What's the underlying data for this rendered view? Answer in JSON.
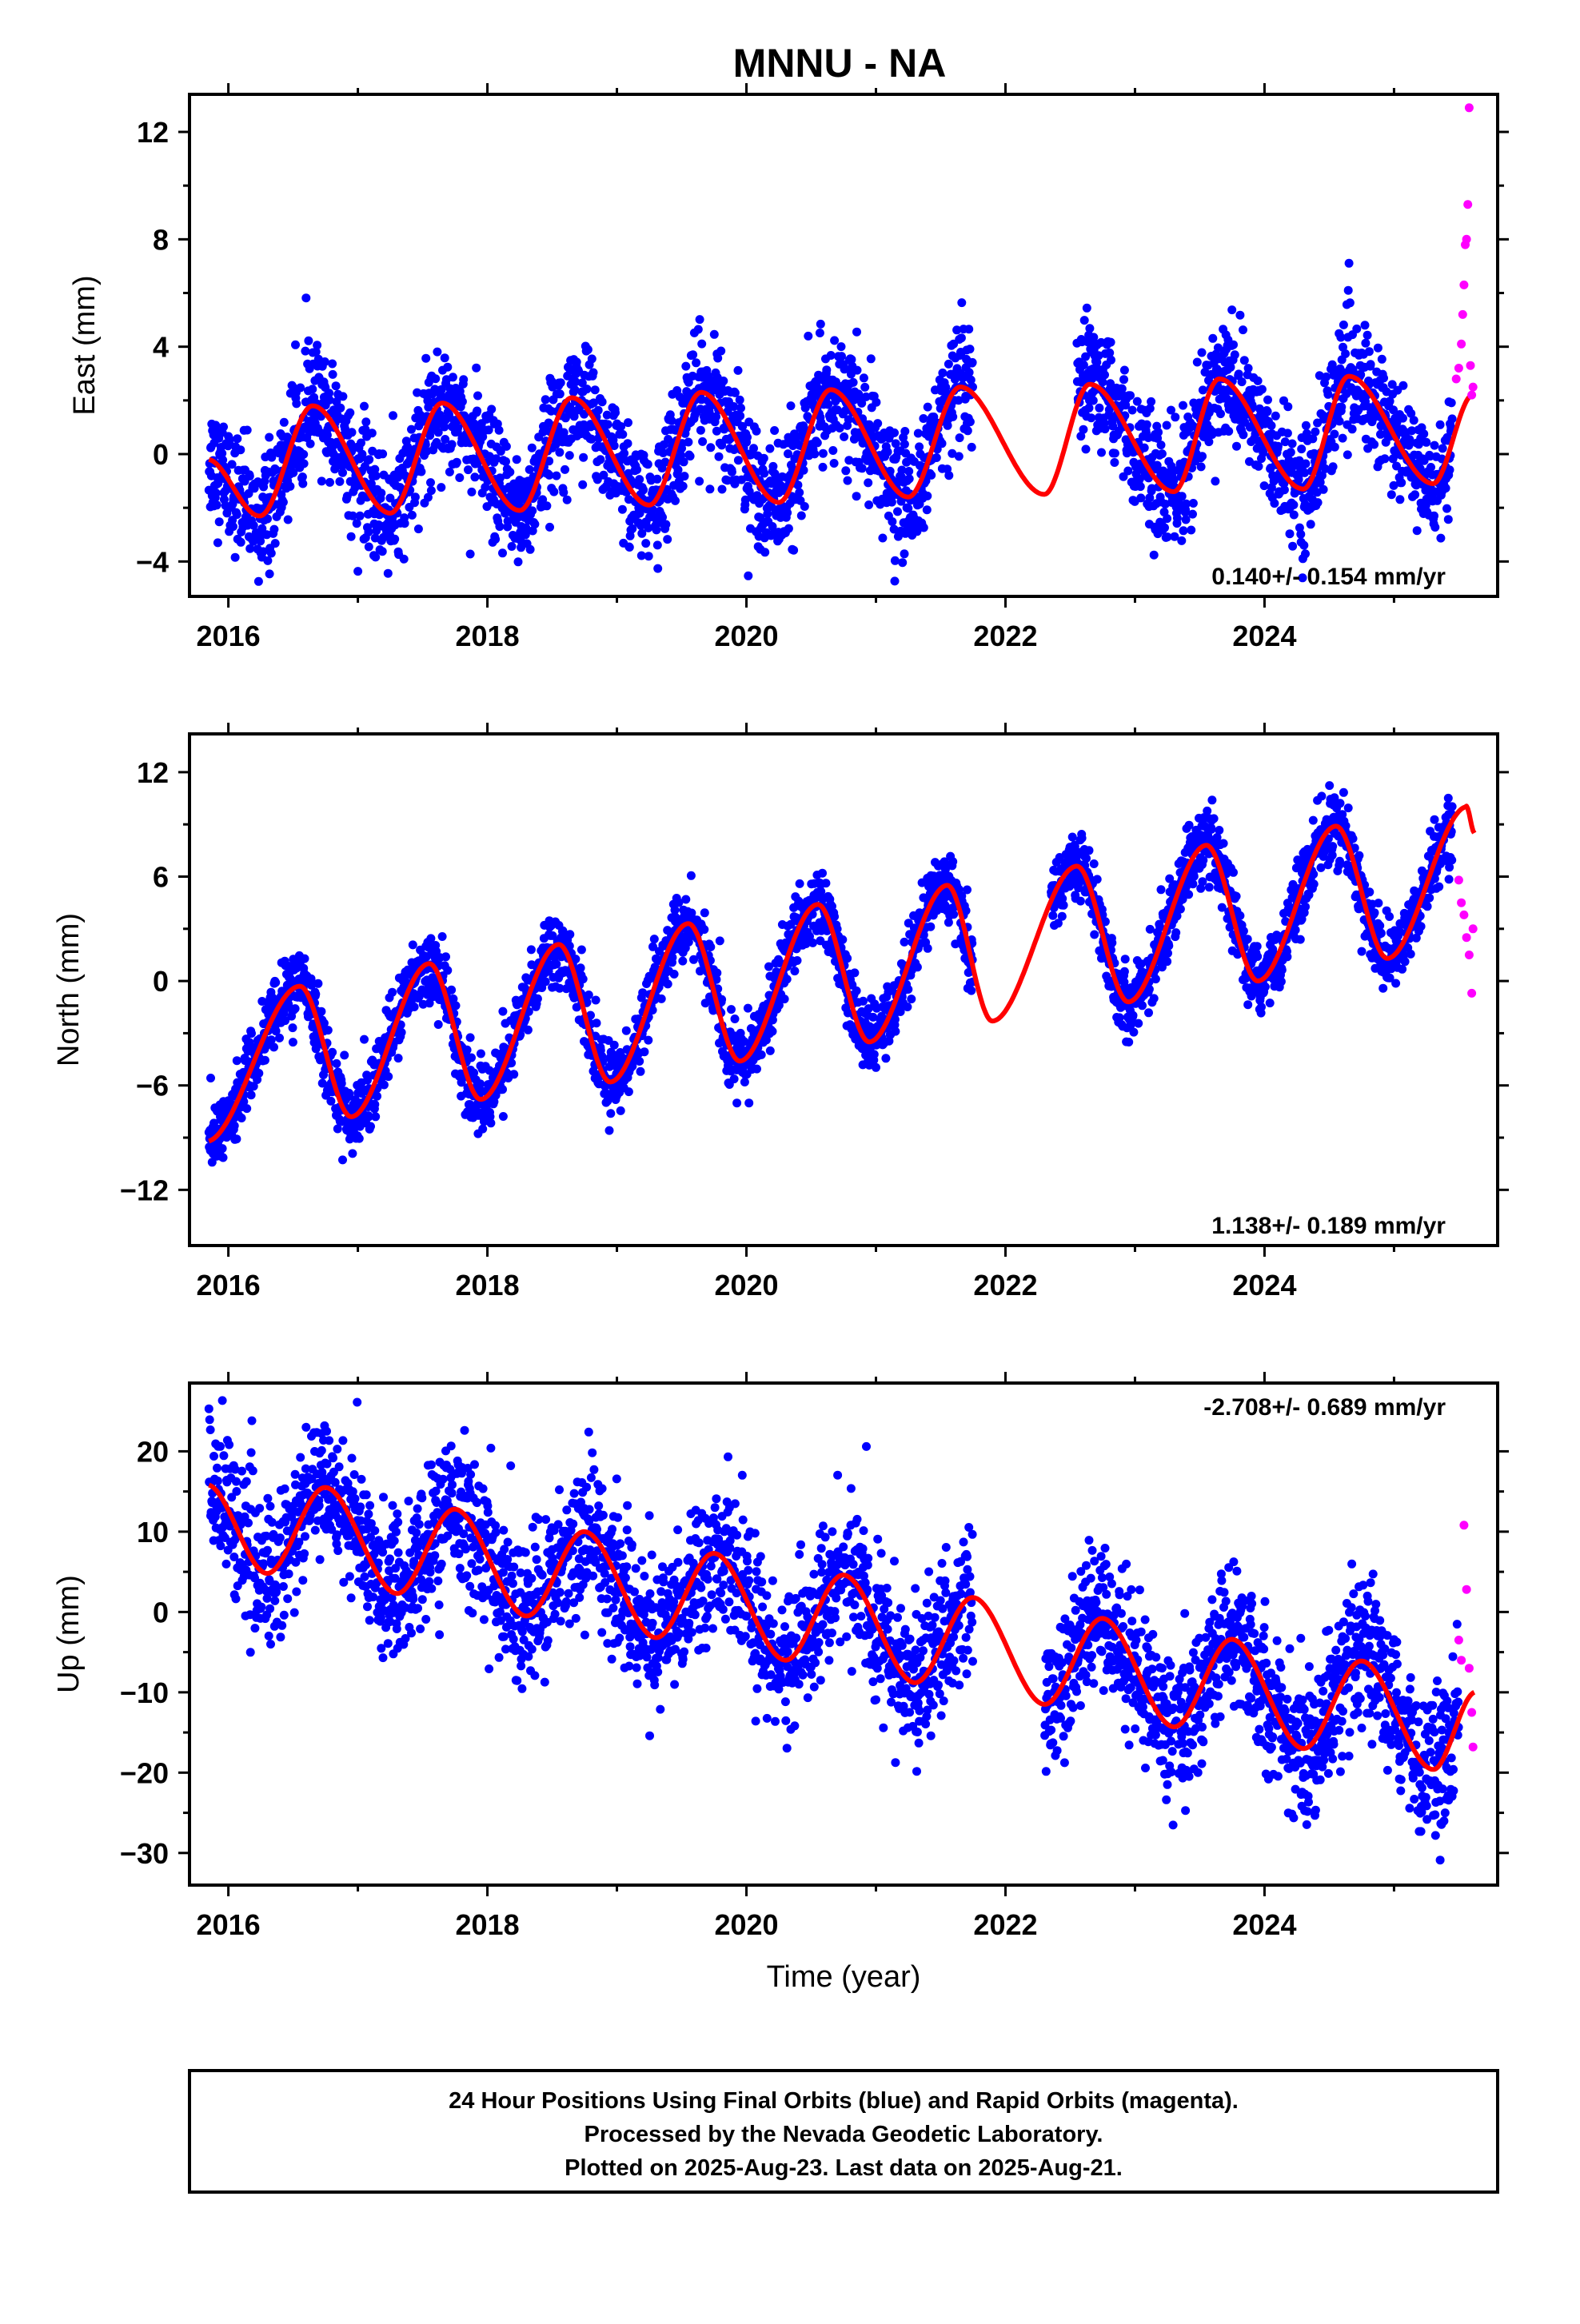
{
  "title": "MNNU - NA",
  "colors": {
    "final": "#0000ff",
    "rapid": "#ff00ff",
    "model": "#ff0000",
    "frame": "#000000"
  },
  "xaxis": {
    "label": "Time (year)",
    "ticks": [
      "2016",
      "2018",
      "2020",
      "2022",
      "2024"
    ]
  },
  "panels": [
    {
      "ylabel": "East (mm)",
      "yticks": [
        "12",
        "8",
        "4",
        "0",
        "−4"
      ],
      "rate": "0.140+/- 0.154 mm/yr"
    },
    {
      "ylabel": "North (mm)",
      "yticks": [
        "12",
        "6",
        "0",
        "−6",
        "−12"
      ],
      "rate": "1.138+/- 0.189 mm/yr"
    },
    {
      "ylabel": "Up (mm)",
      "yticks": [
        "20",
        "10",
        "0",
        "−10",
        "−20",
        "−30"
      ],
      "rate": "-2.708+/- 0.689 mm/yr"
    }
  ],
  "footer": {
    "line1": "24 Hour Positions Using Final Orbits (blue) and Rapid Orbits (magenta).",
    "line2": "Processed by the Nevada Geodetic Laboratory.",
    "line3": "Plotted on 2025-Aug-23. Last data on 2025-Aug-21."
  },
  "chart_data": [
    {
      "type": "scatter",
      "title": "MNNU - NA",
      "ylabel": "East (mm)",
      "xlim": [
        2015.7,
        2025.8
      ],
      "ylim": [
        -5.3,
        13.4
      ],
      "grid": false,
      "series": [
        {
          "kind": "final_positions",
          "rapid": false,
          "mean": 0.0,
          "amplitude": 2.0,
          "trend": 0.14,
          "phase": 0.45,
          "noise": 1.1,
          "start": 2015.85,
          "end": 2025.45,
          "gaps": [
            [
              2021.75,
              2022.55
            ]
          ]
        },
        {
          "kind": "rapid_positions",
          "rapid": true,
          "x": [
            2025.48,
            2025.5,
            2025.52,
            2025.53,
            2025.54,
            2025.55,
            2025.56,
            2025.57,
            2025.58,
            2025.59,
            2025.6,
            2025.61
          ],
          "y": [
            2.8,
            3.2,
            4.1,
            5.2,
            6.3,
            7.8,
            8.0,
            9.3,
            12.9,
            3.3,
            2.2,
            2.5
          ]
        },
        {
          "kind": "model",
          "amplitude": 2.0,
          "trend": 0.14,
          "phase": 0.45,
          "x": [
            2015.85,
            2016.25,
            2016.65,
            2017.25,
            2017.65,
            2018.25,
            2018.65,
            2019.25,
            2019.65,
            2020.25,
            2020.65,
            2021.25,
            2021.65,
            2022.3,
            2022.65,
            2023.3,
            2023.65,
            2024.3,
            2024.65,
            2025.3,
            2025.6
          ],
          "y": [
            -0.2,
            -2.3,
            1.8,
            -2.2,
            1.9,
            -2.1,
            2.1,
            -1.9,
            2.3,
            -1.8,
            2.4,
            -1.6,
            2.5,
            -1.5,
            2.6,
            -1.4,
            2.8,
            -1.3,
            2.9,
            -1.1,
            2.2
          ]
        }
      ],
      "annotation": "0.140+/- 0.154 mm/yr"
    },
    {
      "type": "scatter",
      "ylabel": "North (mm)",
      "xlim": [
        2015.7,
        2025.8
      ],
      "ylim": [
        -15.2,
        14.2
      ],
      "grid": false,
      "series": [
        {
          "kind": "final_positions",
          "rapid": false,
          "mean": -3.5,
          "amplitude": 4.3,
          "trend": 1.138,
          "phase": 0.55,
          "noise": 1.0,
          "start": 2015.85,
          "end": 2025.45,
          "gaps": [
            [
              2021.75,
              2022.35
            ]
          ]
        },
        {
          "kind": "rapid_positions",
          "rapid": true,
          "x": [
            2025.5,
            2025.52,
            2025.54,
            2025.56,
            2025.58,
            2025.6,
            2025.61
          ],
          "y": [
            5.8,
            4.5,
            3.8,
            2.5,
            1.5,
            -0.7,
            3.0
          ]
        },
        {
          "kind": "model",
          "x": [
            2015.85,
            2016.55,
            2016.95,
            2017.55,
            2017.95,
            2018.55,
            2018.95,
            2019.55,
            2019.95,
            2020.55,
            2020.95,
            2021.55,
            2021.9,
            2022.55,
            2022.95,
            2023.55,
            2023.95,
            2024.55,
            2024.95,
            2025.55,
            2025.62
          ],
          "y": [
            -9.2,
            -0.3,
            -7.8,
            1.0,
            -6.8,
            2.1,
            -5.8,
            3.3,
            -4.6,
            4.4,
            -3.5,
            5.5,
            -2.3,
            6.6,
            -1.2,
            7.8,
            0.0,
            8.9,
            1.3,
            10.0,
            8.5
          ]
        }
      ],
      "annotation": "1.138+/- 0.189 mm/yr"
    },
    {
      "type": "scatter",
      "ylabel": "Up (mm)",
      "xlabel": "Time (year)",
      "xlim": [
        2015.7,
        2025.8
      ],
      "ylim": [
        -34.0,
        28.5
      ],
      "grid": false,
      "series": [
        {
          "kind": "final_positions",
          "rapid": false,
          "mean": 2.0,
          "amplitude": 5.5,
          "trend": -2.708,
          "phase": 0.72,
          "noise": 4.5,
          "start": 2015.85,
          "end": 2025.5,
          "gaps": [
            [
              2021.75,
              2022.3
            ]
          ]
        },
        {
          "kind": "rapid_positions",
          "rapid": true,
          "x": [
            2025.5,
            2025.52,
            2025.54,
            2025.56,
            2025.58,
            2025.6,
            2025.61
          ],
          "y": [
            -3.5,
            -6.0,
            10.8,
            2.8,
            -7.0,
            -12.5,
            -16.8
          ]
        },
        {
          "kind": "model",
          "x": [
            2015.85,
            2016.3,
            2016.75,
            2017.3,
            2017.75,
            2018.3,
            2018.75,
            2019.3,
            2019.75,
            2020.3,
            2020.75,
            2021.3,
            2021.75,
            2022.3,
            2022.75,
            2023.3,
            2023.75,
            2024.3,
            2024.75,
            2025.3,
            2025.62
          ],
          "y": [
            15.8,
            4.8,
            15.5,
            2.3,
            12.8,
            -0.5,
            10.0,
            -3.2,
            7.3,
            -6.0,
            4.6,
            -8.8,
            1.8,
            -11.5,
            -0.8,
            -14.3,
            -3.4,
            -17.0,
            -6.1,
            -19.6,
            -10.0
          ]
        }
      ],
      "annotation": "-2.708+/- 0.689 mm/yr"
    }
  ]
}
